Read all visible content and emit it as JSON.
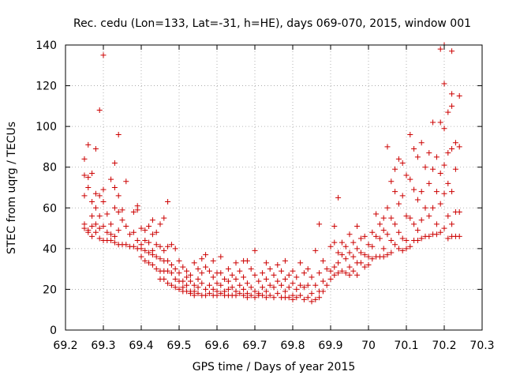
{
  "chart_data": {
    "type": "scatter",
    "title": "Rec. cedu (Lon=133, Lat=-31, h=HE), days 069-070, 2015, window 001",
    "xlabel": "GPS time / Days of year 2015",
    "ylabel": "STEC from uqrg / TECUs",
    "xlim": [
      69.2,
      70.3
    ],
    "ylim": [
      0,
      140
    ],
    "xticks": [
      "69.2",
      "69.3",
      "69.4",
      "69.5",
      "69.6",
      "69.7",
      "69.8",
      "69.9",
      "70",
      "70.1",
      "70.2",
      "70.3"
    ],
    "yticks": [
      "0",
      "20",
      "40",
      "60",
      "80",
      "100",
      "120",
      "140"
    ],
    "grid": true,
    "marker": "+",
    "color": "#cc0000",
    "points": [
      [
        69.25,
        84
      ],
      [
        69.25,
        76
      ],
      [
        69.25,
        66
      ],
      [
        69.25,
        52
      ],
      [
        69.25,
        50
      ],
      [
        69.26,
        91
      ],
      [
        69.26,
        75
      ],
      [
        69.26,
        70
      ],
      [
        69.26,
        49
      ],
      [
        69.26,
        48
      ],
      [
        69.27,
        77
      ],
      [
        69.27,
        63
      ],
      [
        69.27,
        56
      ],
      [
        69.27,
        51
      ],
      [
        69.27,
        46
      ],
      [
        69.28,
        89
      ],
      [
        69.28,
        67
      ],
      [
        69.28,
        60
      ],
      [
        69.28,
        52
      ],
      [
        69.28,
        48
      ],
      [
        69.29,
        108
      ],
      [
        69.29,
        66
      ],
      [
        69.29,
        56
      ],
      [
        69.29,
        50
      ],
      [
        69.29,
        45
      ],
      [
        69.3,
        135
      ],
      [
        69.3,
        69
      ],
      [
        69.3,
        63
      ],
      [
        69.3,
        51
      ],
      [
        69.3,
        44
      ],
      [
        69.31,
        57
      ],
      [
        69.31,
        48
      ],
      [
        69.31,
        44
      ],
      [
        69.32,
        74
      ],
      [
        69.32,
        52
      ],
      [
        69.32,
        47
      ],
      [
        69.32,
        44
      ],
      [
        69.33,
        82
      ],
      [
        69.33,
        70
      ],
      [
        69.33,
        60
      ],
      [
        69.33,
        46
      ],
      [
        69.33,
        43
      ],
      [
        69.34,
        96
      ],
      [
        69.34,
        66
      ],
      [
        69.34,
        58
      ],
      [
        69.34,
        49
      ],
      [
        69.34,
        42
      ],
      [
        69.35,
        59
      ],
      [
        69.35,
        54
      ],
      [
        69.35,
        42
      ],
      [
        69.36,
        73
      ],
      [
        69.36,
        51
      ],
      [
        69.36,
        42
      ],
      [
        69.37,
        47
      ],
      [
        69.37,
        41
      ],
      [
        69.38,
        58
      ],
      [
        69.38,
        48
      ],
      [
        69.38,
        41
      ],
      [
        69.39,
        61
      ],
      [
        69.39,
        59
      ],
      [
        69.39,
        44
      ],
      [
        69.39,
        40
      ],
      [
        69.4,
        50
      ],
      [
        69.4,
        42
      ],
      [
        69.4,
        40
      ],
      [
        69.4,
        36
      ],
      [
        69.41,
        49
      ],
      [
        69.41,
        44
      ],
      [
        69.41,
        39
      ],
      [
        69.41,
        34
      ],
      [
        69.42,
        51
      ],
      [
        69.42,
        43
      ],
      [
        69.42,
        38
      ],
      [
        69.42,
        33
      ],
      [
        69.43,
        54
      ],
      [
        69.43,
        47
      ],
      [
        69.43,
        39
      ],
      [
        69.43,
        37
      ],
      [
        69.43,
        32
      ],
      [
        69.44,
        48
      ],
      [
        69.44,
        42
      ],
      [
        69.44,
        36
      ],
      [
        69.44,
        30
      ],
      [
        69.45,
        52
      ],
      [
        69.45,
        41
      ],
      [
        69.45,
        35
      ],
      [
        69.45,
        29
      ],
      [
        69.45,
        25
      ],
      [
        69.46,
        55
      ],
      [
        69.46,
        39
      ],
      [
        69.46,
        34
      ],
      [
        69.46,
        29
      ],
      [
        69.46,
        25
      ],
      [
        69.47,
        63
      ],
      [
        69.47,
        41
      ],
      [
        69.47,
        34
      ],
      [
        69.47,
        29
      ],
      [
        69.47,
        23
      ],
      [
        69.48,
        42
      ],
      [
        69.48,
        32
      ],
      [
        69.48,
        28
      ],
      [
        69.48,
        22
      ],
      [
        69.49,
        40
      ],
      [
        69.49,
        30
      ],
      [
        69.49,
        25
      ],
      [
        69.49,
        21
      ],
      [
        69.5,
        34
      ],
      [
        69.5,
        28
      ],
      [
        69.5,
        24
      ],
      [
        69.5,
        20
      ],
      [
        69.51,
        31
      ],
      [
        69.51,
        24
      ],
      [
        69.51,
        21
      ],
      [
        69.51,
        19
      ],
      [
        69.52,
        29
      ],
      [
        69.52,
        26
      ],
      [
        69.52,
        22
      ],
      [
        69.52,
        19
      ],
      [
        69.53,
        27
      ],
      [
        69.53,
        24
      ],
      [
        69.53,
        19
      ],
      [
        69.53,
        18
      ],
      [
        69.54,
        33
      ],
      [
        69.54,
        22
      ],
      [
        69.54,
        19
      ],
      [
        69.54,
        17
      ],
      [
        69.55,
        30
      ],
      [
        69.55,
        25
      ],
      [
        69.55,
        21
      ],
      [
        69.55,
        18
      ],
      [
        69.56,
        35
      ],
      [
        69.56,
        28
      ],
      [
        69.56,
        23
      ],
      [
        69.56,
        17
      ],
      [
        69.57,
        37
      ],
      [
        69.57,
        31
      ],
      [
        69.57,
        20
      ],
      [
        69.57,
        17
      ],
      [
        69.58,
        29
      ],
      [
        69.58,
        22
      ],
      [
        69.58,
        18
      ],
      [
        69.59,
        34
      ],
      [
        69.59,
        26
      ],
      [
        69.59,
        20
      ],
      [
        69.59,
        17
      ],
      [
        69.6,
        28
      ],
      [
        69.6,
        23
      ],
      [
        69.6,
        19
      ],
      [
        69.6,
        17
      ],
      [
        69.61,
        36
      ],
      [
        69.61,
        28
      ],
      [
        69.61,
        22
      ],
      [
        69.61,
        18
      ],
      [
        69.62,
        25
      ],
      [
        69.62,
        19
      ],
      [
        69.62,
        17
      ],
      [
        69.63,
        30
      ],
      [
        69.63,
        24
      ],
      [
        69.63,
        20
      ],
      [
        69.63,
        17
      ],
      [
        69.64,
        27
      ],
      [
        69.64,
        21
      ],
      [
        69.64,
        17
      ],
      [
        69.65,
        33
      ],
      [
        69.65,
        25
      ],
      [
        69.65,
        19
      ],
      [
        69.65,
        17
      ],
      [
        69.66,
        29
      ],
      [
        69.66,
        22
      ],
      [
        69.66,
        18
      ],
      [
        69.67,
        34
      ],
      [
        69.67,
        26
      ],
      [
        69.67,
        20
      ],
      [
        69.67,
        17
      ],
      [
        69.68,
        34
      ],
      [
        69.68,
        23
      ],
      [
        69.68,
        18
      ],
      [
        69.68,
        16
      ],
      [
        69.69,
        30
      ],
      [
        69.69,
        21
      ],
      [
        69.69,
        17
      ],
      [
        69.7,
        39
      ],
      [
        69.7,
        27
      ],
      [
        69.7,
        19
      ],
      [
        69.7,
        16
      ],
      [
        69.71,
        24
      ],
      [
        69.71,
        18
      ],
      [
        69.71,
        17
      ],
      [
        69.72,
        28
      ],
      [
        69.72,
        21
      ],
      [
        69.72,
        17
      ],
      [
        69.73,
        33
      ],
      [
        69.73,
        25
      ],
      [
        69.73,
        19
      ],
      [
        69.73,
        16
      ],
      [
        69.74,
        30
      ],
      [
        69.74,
        22
      ],
      [
        69.74,
        17
      ],
      [
        69.75,
        27
      ],
      [
        69.75,
        21
      ],
      [
        69.75,
        16
      ],
      [
        69.76,
        32
      ],
      [
        69.76,
        24
      ],
      [
        69.76,
        18
      ],
      [
        69.77,
        29
      ],
      [
        69.77,
        22
      ],
      [
        69.77,
        16
      ],
      [
        69.78,
        34
      ],
      [
        69.78,
        25
      ],
      [
        69.78,
        19
      ],
      [
        69.78,
        16
      ],
      [
        69.79,
        27
      ],
      [
        69.79,
        21
      ],
      [
        69.79,
        16
      ],
      [
        69.8,
        29
      ],
      [
        69.8,
        23
      ],
      [
        69.8,
        17
      ],
      [
        69.8,
        15
      ],
      [
        69.81,
        26
      ],
      [
        69.81,
        20
      ],
      [
        69.81,
        16
      ],
      [
        69.82,
        33
      ],
      [
        69.82,
        22
      ],
      [
        69.82,
        17
      ],
      [
        69.83,
        28
      ],
      [
        69.83,
        21
      ],
      [
        69.83,
        15
      ],
      [
        69.84,
        30
      ],
      [
        69.84,
        22
      ],
      [
        69.84,
        16
      ],
      [
        69.85,
        26
      ],
      [
        69.85,
        18
      ],
      [
        69.85,
        14
      ],
      [
        69.86,
        39
      ],
      [
        69.86,
        22
      ],
      [
        69.86,
        15
      ],
      [
        69.87,
        52
      ],
      [
        69.87,
        28
      ],
      [
        69.87,
        19
      ],
      [
        69.87,
        16
      ],
      [
        69.88,
        34
      ],
      [
        69.88,
        24
      ],
      [
        69.88,
        19
      ],
      [
        69.89,
        30
      ],
      [
        69.89,
        22
      ],
      [
        69.9,
        41
      ],
      [
        69.9,
        29
      ],
      [
        69.9,
        25
      ],
      [
        69.91,
        51
      ],
      [
        69.91,
        43
      ],
      [
        69.91,
        31
      ],
      [
        69.91,
        27
      ],
      [
        69.92,
        65
      ],
      [
        69.92,
        38
      ],
      [
        69.92,
        33
      ],
      [
        69.92,
        28
      ],
      [
        69.93,
        43
      ],
      [
        69.93,
        37
      ],
      [
        69.93,
        29
      ],
      [
        69.94,
        41
      ],
      [
        69.94,
        35
      ],
      [
        69.94,
        28
      ],
      [
        69.95,
        47
      ],
      [
        69.95,
        38
      ],
      [
        69.95,
        31
      ],
      [
        69.95,
        27
      ],
      [
        69.96,
        43
      ],
      [
        69.96,
        36
      ],
      [
        69.96,
        29
      ],
      [
        69.97,
        51
      ],
      [
        69.97,
        40
      ],
      [
        69.97,
        33
      ],
      [
        69.97,
        27
      ],
      [
        69.98,
        45
      ],
      [
        69.98,
        38
      ],
      [
        69.98,
        33
      ],
      [
        69.99,
        46
      ],
      [
        69.99,
        37
      ],
      [
        69.99,
        31
      ],
      [
        70.0,
        42
      ],
      [
        70.0,
        36
      ],
      [
        70.0,
        32
      ],
      [
        70.01,
        48
      ],
      [
        70.01,
        41
      ],
      [
        70.01,
        35
      ],
      [
        70.02,
        57
      ],
      [
        70.02,
        46
      ],
      [
        70.02,
        36
      ],
      [
        70.03,
        52
      ],
      [
        70.03,
        45
      ],
      [
        70.03,
        36
      ],
      [
        70.04,
        55
      ],
      [
        70.04,
        49
      ],
      [
        70.04,
        40
      ],
      [
        70.04,
        36
      ],
      [
        70.05,
        90
      ],
      [
        70.05,
        60
      ],
      [
        70.05,
        47
      ],
      [
        70.05,
        37
      ],
      [
        70.06,
        73
      ],
      [
        70.06,
        55
      ],
      [
        70.06,
        44
      ],
      [
        70.06,
        38
      ],
      [
        70.07,
        79
      ],
      [
        70.07,
        68
      ],
      [
        70.07,
        52
      ],
      [
        70.07,
        42
      ],
      [
        70.08,
        84
      ],
      [
        70.08,
        62
      ],
      [
        70.08,
        48
      ],
      [
        70.08,
        40
      ],
      [
        70.09,
        82
      ],
      [
        70.09,
        66
      ],
      [
        70.09,
        45
      ],
      [
        70.09,
        39
      ],
      [
        70.1,
        76
      ],
      [
        70.1,
        56
      ],
      [
        70.1,
        44
      ],
      [
        70.1,
        40
      ],
      [
        70.11,
        96
      ],
      [
        70.11,
        74
      ],
      [
        70.11,
        55
      ],
      [
        70.11,
        41
      ],
      [
        70.12,
        89
      ],
      [
        70.12,
        69
      ],
      [
        70.12,
        52
      ],
      [
        70.12,
        44
      ],
      [
        70.13,
        85
      ],
      [
        70.13,
        64
      ],
      [
        70.13,
        49
      ],
      [
        70.13,
        44
      ],
      [
        70.14,
        92
      ],
      [
        70.14,
        68
      ],
      [
        70.14,
        54
      ],
      [
        70.14,
        45
      ],
      [
        70.15,
        80
      ],
      [
        70.15,
        60
      ],
      [
        70.15,
        46
      ],
      [
        70.16,
        87
      ],
      [
        70.16,
        72
      ],
      [
        70.16,
        56
      ],
      [
        70.16,
        46
      ],
      [
        70.17,
        102
      ],
      [
        70.17,
        79
      ],
      [
        70.17,
        60
      ],
      [
        70.17,
        47
      ],
      [
        70.18,
        85
      ],
      [
        70.18,
        68
      ],
      [
        70.18,
        52
      ],
      [
        70.18,
        47
      ],
      [
        70.19,
        138
      ],
      [
        70.19,
        102
      ],
      [
        70.19,
        77
      ],
      [
        70.19,
        62
      ],
      [
        70.19,
        48
      ],
      [
        70.2,
        140
      ],
      [
        70.2,
        121
      ],
      [
        70.2,
        99
      ],
      [
        70.2,
        81
      ],
      [
        70.2,
        67
      ],
      [
        70.2,
        50
      ],
      [
        70.21,
        107
      ],
      [
        70.21,
        87
      ],
      [
        70.21,
        72
      ],
      [
        70.21,
        56
      ],
      [
        70.21,
        45
      ],
      [
        70.22,
        137
      ],
      [
        70.22,
        116
      ],
      [
        70.22,
        110
      ],
      [
        70.22,
        89
      ],
      [
        70.22,
        68
      ],
      [
        70.22,
        52
      ],
      [
        70.22,
        46
      ],
      [
        70.23,
        92
      ],
      [
        70.23,
        79
      ],
      [
        70.23,
        58
      ],
      [
        70.23,
        46
      ],
      [
        70.24,
        115
      ],
      [
        70.24,
        90
      ],
      [
        70.24,
        58
      ],
      [
        70.24,
        46
      ]
    ]
  }
}
